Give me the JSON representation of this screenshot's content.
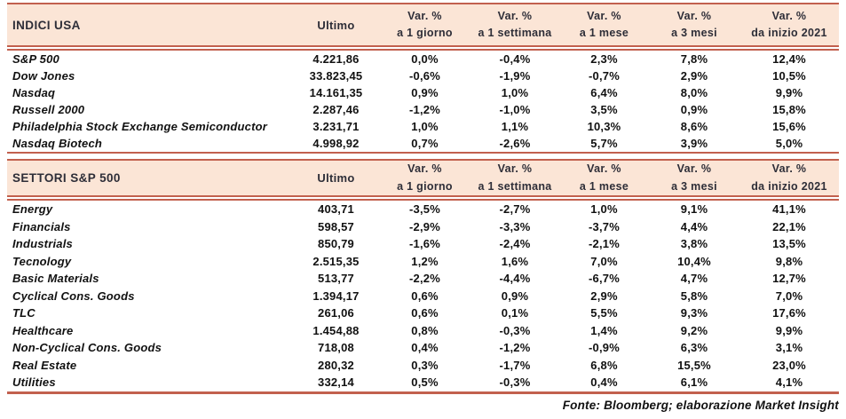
{
  "columns": {
    "ultimo": "Ultimo",
    "var_label": "Var. %",
    "periods": [
      "a 1 giorno",
      "a 1 settimana",
      "a 1 mese",
      "a 3 mesi",
      "da inizio 2021"
    ]
  },
  "sections": [
    {
      "title": "INDICI USA",
      "rows": [
        {
          "name": "S&P 500",
          "ultimo": "4.221,86",
          "vars": [
            "0,0%",
            "-0,4%",
            "2,3%",
            "7,8%",
            "12,4%"
          ]
        },
        {
          "name": "Dow Jones",
          "ultimo": "33.823,45",
          "vars": [
            "-0,6%",
            "-1,9%",
            "-0,7%",
            "2,9%",
            "10,5%"
          ]
        },
        {
          "name": "Nasdaq",
          "ultimo": "14.161,35",
          "vars": [
            "0,9%",
            "1,0%",
            "6,4%",
            "8,0%",
            "9,9%"
          ]
        },
        {
          "name": "Russell 2000",
          "ultimo": "2.287,46",
          "vars": [
            "-1,2%",
            "-1,0%",
            "3,5%",
            "0,9%",
            "15,8%"
          ]
        },
        {
          "name": "Philadelphia Stock Exchange Semiconductor",
          "ultimo": "3.231,71",
          "vars": [
            "1,0%",
            "1,1%",
            "10,3%",
            "8,6%",
            "15,6%"
          ]
        },
        {
          "name": "Nasdaq Biotech",
          "ultimo": "4.998,92",
          "vars": [
            "0,7%",
            "-2,6%",
            "5,7%",
            "3,9%",
            "5,0%"
          ]
        }
      ]
    },
    {
      "title": "SETTORI S&P 500",
      "rows": [
        {
          "name": "Energy",
          "ultimo": "403,71",
          "vars": [
            "-3,5%",
            "-2,7%",
            "1,0%",
            "9,1%",
            "41,1%"
          ]
        },
        {
          "name": "Financials",
          "ultimo": "598,57",
          "vars": [
            "-2,9%",
            "-3,3%",
            "-3,7%",
            "4,4%",
            "22,1%"
          ]
        },
        {
          "name": "Industrials",
          "ultimo": "850,79",
          "vars": [
            "-1,6%",
            "-2,4%",
            "-2,1%",
            "3,8%",
            "13,5%"
          ]
        },
        {
          "name": "Tecnology",
          "ultimo": "2.515,35",
          "vars": [
            "1,2%",
            "1,6%",
            "7,0%",
            "10,4%",
            "9,8%"
          ]
        },
        {
          "name": "Basic Materials",
          "ultimo": "513,77",
          "vars": [
            "-2,2%",
            "-4,4%",
            "-6,7%",
            "4,7%",
            "12,7%"
          ]
        },
        {
          "name": "Cyclical Cons. Goods",
          "ultimo": "1.394,17",
          "vars": [
            "0,6%",
            "0,9%",
            "2,9%",
            "5,8%",
            "7,0%"
          ]
        },
        {
          "name": "TLC",
          "ultimo": "261,06",
          "vars": [
            "0,6%",
            "0,1%",
            "5,5%",
            "9,3%",
            "17,6%"
          ]
        },
        {
          "name": "Healthcare",
          "ultimo": "1.454,88",
          "vars": [
            "0,8%",
            "-0,3%",
            "1,4%",
            "9,2%",
            "9,9%"
          ]
        },
        {
          "name": "Non-Cyclical Cons. Goods",
          "ultimo": "718,08",
          "vars": [
            "0,4%",
            "-1,2%",
            "-0,9%",
            "6,3%",
            "3,1%"
          ]
        },
        {
          "name": "Real Estate",
          "ultimo": "280,32",
          "vars": [
            "0,3%",
            "-1,7%",
            "6,8%",
            "15,5%",
            "23,0%"
          ]
        },
        {
          "name": "Utilities",
          "ultimo": "332,14",
          "vars": [
            "0,5%",
            "-0,3%",
            "0,4%",
            "6,1%",
            "4,1%"
          ]
        }
      ]
    }
  ],
  "footer": {
    "source": "Fonte: Bloomberg; elaborazione Market Insight"
  },
  "colors": {
    "header_band": "#fbe5d6",
    "rule_line": "#c2604e",
    "header_text": "#2e2e38",
    "body_text": "#111111"
  }
}
